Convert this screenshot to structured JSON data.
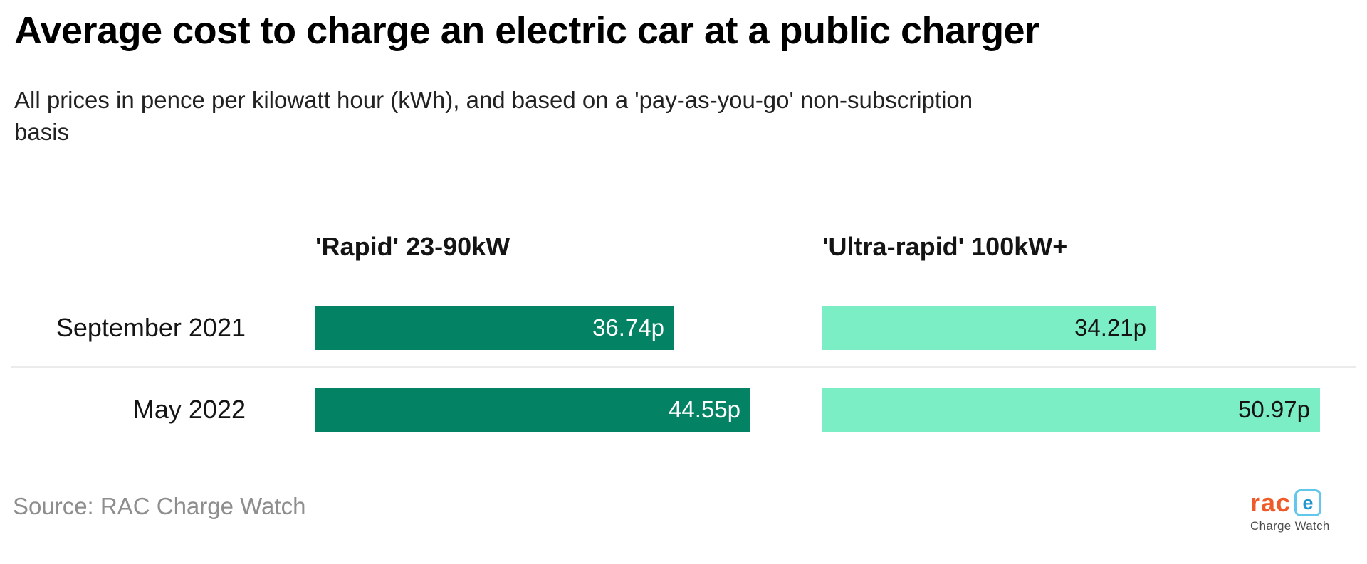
{
  "chart_data": {
    "type": "bar",
    "orientation": "horizontal",
    "title": "Average cost to charge an electric car at a public charger",
    "subtitle": "All prices in pence per kilowatt hour (kWh), and based on a 'pay-as-you-go' non-subscription basis",
    "subtitle_lines": [
      "All prices in pence per kilowatt hour (kWh), and based on a 'pay-as-you-go' non-subscription",
      "basis"
    ],
    "value_unit": "pence per kWh",
    "value_suffix": "p",
    "legend_position": "column headers above bars",
    "grid": false,
    "axis": {
      "min": 0,
      "implied_max": 51
    },
    "columns": [
      {
        "header": "'Rapid' 23-90kW",
        "bar_color": "#038264",
        "value_text_color": "#ffffff"
      },
      {
        "header": "'Ultra-rapid' 100kW+",
        "bar_color": "#7ceec5",
        "value_text_color": "#141414"
      }
    ],
    "rows": [
      {
        "category": "September 2021",
        "values": [
          36.74,
          34.21
        ],
        "value_labels": [
          "36.74p",
          "34.21p"
        ]
      },
      {
        "category": "May 2022",
        "values": [
          44.55,
          50.97
        ],
        "value_labels": [
          "44.55p",
          "50.97p"
        ]
      }
    ]
  },
  "source": {
    "text": "Source: RAC Charge Watch"
  },
  "logo": {
    "brand": "rac",
    "icon_letter": "e",
    "product": "Charge Watch",
    "brand_color": "#f05a28",
    "icon_color": "#2196cf",
    "product_color": "#4d4d4d"
  }
}
